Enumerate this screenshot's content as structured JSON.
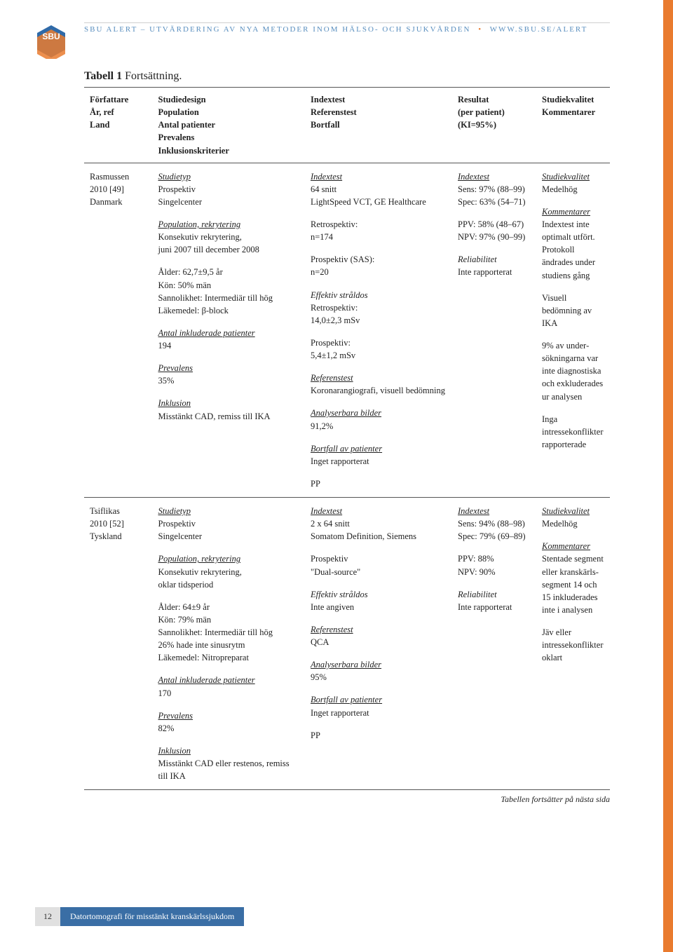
{
  "header": {
    "text_left": "sbu alert – utvärdering av nya metoder inom hälso- och sjukvården",
    "url": "www.sbu.se/alert",
    "logo_text": "SBU"
  },
  "table": {
    "title_bold": "Tabell 1",
    "title_cont": " Fortsättning.",
    "columns": [
      "Författare\nÅr, ref\nLand",
      "Studiedesign\nPopulation\nAntal patienter\nPrevalens\nInklusionskriterier",
      "Indextest\nReferenstest\nBortfall",
      "Resultat\n(per patient)\n(KI=95%)",
      "Studiekvalitet\nKommentarer"
    ],
    "rows": [
      {
        "author": {
          "name": "Rasmussen",
          "year_ref": "2010 [49]",
          "country": "Danmark"
        },
        "design": [
          {
            "u": true,
            "i": true,
            "t": "Studietyp"
          },
          {
            "t": "Prospektiv"
          },
          {
            "t": "Singelcenter",
            "gap": true
          },
          {
            "u": true,
            "i": true,
            "t": "Population, rekrytering"
          },
          {
            "t": "Konsekutiv rekrytering,"
          },
          {
            "t": "juni 2007 till december 2008",
            "gap": true
          },
          {
            "t": "Ålder: 62,7±9,5 år"
          },
          {
            "t": "Kön: 50% män"
          },
          {
            "t": "Sannolikhet: Intermediär till hög"
          },
          {
            "t": "Läkemedel: β-block",
            "gap": true
          },
          {
            "u": true,
            "i": true,
            "t": "Antal inkluderade patienter"
          },
          {
            "t": "194",
            "gap": true
          },
          {
            "u": true,
            "i": true,
            "t": "Prevalens"
          },
          {
            "t": "35%",
            "gap": true
          },
          {
            "u": true,
            "i": true,
            "t": "Inklusion"
          },
          {
            "t": "Misstänkt CAD, remiss till IKA"
          }
        ],
        "index": [
          {
            "u": true,
            "i": true,
            "t": "Indextest"
          },
          {
            "t": "64 snitt"
          },
          {
            "t": "LightSpeed VCT, GE Healthcare",
            "gap": true
          },
          {
            "t": "Retrospektiv:"
          },
          {
            "t": "n=174",
            "gap": true
          },
          {
            "t": "Prospektiv (SAS):"
          },
          {
            "t": "n=20",
            "gap": true
          },
          {
            "i": true,
            "t": "Effektiv stråldos"
          },
          {
            "t": "Retrospektiv:"
          },
          {
            "t": "14,0±2,3 mSv",
            "gap": true
          },
          {
            "t": "Prospektiv:"
          },
          {
            "t": "5,4±1,2 mSv",
            "gap": true
          },
          {
            "u": true,
            "i": true,
            "t": "Referenstest"
          },
          {
            "t": "Koronarangiografi, visuell bedömning",
            "gap": true
          },
          {
            "u": true,
            "i": true,
            "t": "Analyserbara bilder"
          },
          {
            "t": "91,2%",
            "gap": true
          },
          {
            "u": true,
            "i": true,
            "t": "Bortfall av patienter"
          },
          {
            "t": "Inget rapporterat",
            "gap": true
          },
          {
            "t": "PP"
          }
        ],
        "result": [
          {
            "u": true,
            "i": true,
            "t": "Indextest"
          },
          {
            "t": "Sens: 97% (88–99)"
          },
          {
            "t": "Spec: 63% (54–71)",
            "gap": true
          },
          {
            "t": "PPV: 58% (48–67)"
          },
          {
            "t": "NPV: 97% (90–99)",
            "gap": true
          },
          {
            "i": true,
            "t": "Reliabilitet"
          },
          {
            "t": "Inte rapporterat"
          }
        ],
        "quality": [
          {
            "u": true,
            "i": true,
            "t": "Studiekvalitet"
          },
          {
            "t": "Medelhög",
            "gap": true
          },
          {
            "u": true,
            "i": true,
            "t": "Kommentarer"
          },
          {
            "t": "Indextest inte optimalt utfört. Protokoll ändrades under studiens gång",
            "gap": true
          },
          {
            "t": "Visuell bedömning av IKA",
            "gap": true
          },
          {
            "t": "9% av under­sökningarna var inte diagnostiska och exkluderades ur analysen",
            "gap": true
          },
          {
            "t": "Inga intressekonflikter rapporterade"
          }
        ]
      },
      {
        "author": {
          "name": "Tsiflikas",
          "year_ref": "2010 [52]",
          "country": "Tyskland"
        },
        "design": [
          {
            "u": true,
            "i": true,
            "t": "Studietyp"
          },
          {
            "t": "Prospektiv"
          },
          {
            "t": "Singelcenter",
            "gap": true
          },
          {
            "u": true,
            "i": true,
            "t": "Population, rekrytering"
          },
          {
            "t": "Konsekutiv rekrytering,"
          },
          {
            "t": "oklar tidsperiod",
            "gap": true
          },
          {
            "t": "Ålder: 64±9 år"
          },
          {
            "t": "Kön: 79% män"
          },
          {
            "t": "Sannolikhet: Intermediär till hög"
          },
          {
            "t": "26% hade inte sinusrytm"
          },
          {
            "t": "Läkemedel: Nitropreparat",
            "gap": true
          },
          {
            "u": true,
            "i": true,
            "t": "Antal inkluderade patienter"
          },
          {
            "t": "170",
            "gap": true
          },
          {
            "u": true,
            "i": true,
            "t": "Prevalens"
          },
          {
            "t": "82%",
            "gap": true
          },
          {
            "u": true,
            "i": true,
            "t": "Inklusion"
          },
          {
            "t": "Misstänkt CAD eller restenos, remiss till IKA"
          }
        ],
        "index": [
          {
            "u": true,
            "i": true,
            "t": "Indextest"
          },
          {
            "t": "2 x 64 snitt"
          },
          {
            "t": "Somatom Definition, Siemens",
            "gap": true
          },
          {
            "t": "Prospektiv"
          },
          {
            "t": "\"Dual-source\"",
            "gap": true
          },
          {
            "i": true,
            "t": "Effektiv stråldos"
          },
          {
            "t": "Inte angiven",
            "gap": true
          },
          {
            "u": true,
            "i": true,
            "t": "Referenstest"
          },
          {
            "t": "QCA",
            "gap": true
          },
          {
            "u": true,
            "i": true,
            "t": "Analyserbara bilder"
          },
          {
            "t": "95%",
            "gap": true
          },
          {
            "u": true,
            "i": true,
            "t": "Bortfall av patienter"
          },
          {
            "t": "Inget rapporterat",
            "gap": true
          },
          {
            "t": "PP"
          }
        ],
        "result": [
          {
            "u": true,
            "i": true,
            "t": "Indextest"
          },
          {
            "t": "Sens: 94% (88–98)"
          },
          {
            "t": "Spec: 79% (69–89)",
            "gap": true
          },
          {
            "t": "PPV: 88%"
          },
          {
            "t": "NPV: 90%",
            "gap": true
          },
          {
            "i": true,
            "t": "Reliabilitet"
          },
          {
            "t": "Inte rapporterat"
          }
        ],
        "quality": [
          {
            "u": true,
            "i": true,
            "t": "Studiekvalitet"
          },
          {
            "t": "Medelhög",
            "gap": true
          },
          {
            "u": true,
            "i": true,
            "t": "Kommentarer"
          },
          {
            "t": "Stentade segment eller kranskärls­segment 14 och 15 inkluderades inte i analysen",
            "gap": true
          },
          {
            "t": "Jäv eller intressekonflikter oklart"
          }
        ]
      }
    ],
    "continuation_note": "Tabellen fortsätter på nästa sida"
  },
  "footer": {
    "page_number": "12",
    "doc_title": "Datortomografi för misstänkt kranskärlssjukdom"
  },
  "colors": {
    "accent_orange": "#e97b2f",
    "blue_bar": "#3a6ea5",
    "blue_text": "#5a8fbf",
    "grey_box": "#e0e0e0"
  }
}
